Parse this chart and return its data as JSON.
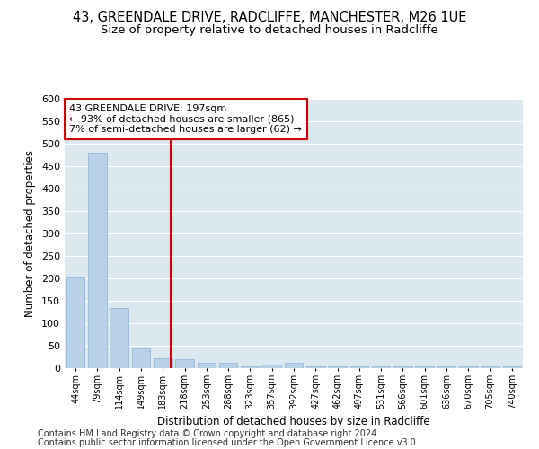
{
  "title1": "43, GREENDALE DRIVE, RADCLIFFE, MANCHESTER, M26 1UE",
  "title2": "Size of property relative to detached houses in Radcliffe",
  "xlabel": "Distribution of detached houses by size in Radcliffe",
  "ylabel": "Number of detached properties",
  "footer1": "Contains HM Land Registry data © Crown copyright and database right 2024.",
  "footer2": "Contains public sector information licensed under the Open Government Licence v3.0.",
  "categories": [
    "44sqm",
    "79sqm",
    "114sqm",
    "149sqm",
    "183sqm",
    "218sqm",
    "253sqm",
    "288sqm",
    "323sqm",
    "357sqm",
    "392sqm",
    "427sqm",
    "462sqm",
    "497sqm",
    "531sqm",
    "566sqm",
    "601sqm",
    "636sqm",
    "670sqm",
    "705sqm",
    "740sqm"
  ],
  "values": [
    202,
    480,
    135,
    44,
    22,
    20,
    13,
    13,
    5,
    8,
    12,
    5,
    4,
    5,
    5,
    5,
    4,
    4,
    5,
    4,
    4
  ],
  "bar_color": "#b8d0e8",
  "bar_edgecolor": "#8ab0d0",
  "background_color": "#dce8f0",
  "grid_color": "#ffffff",
  "annotation_text": "43 GREENDALE DRIVE: 197sqm\n← 93% of detached houses are smaller (865)\n7% of semi-detached houses are larger (62) →",
  "annotation_box_color": "#ffffff",
  "annotation_box_edgecolor": "#cc0000",
  "redline_color": "#cc0000",
  "ylim": [
    0,
    600
  ],
  "yticks": [
    0,
    50,
    100,
    150,
    200,
    250,
    300,
    350,
    400,
    450,
    500,
    550,
    600
  ],
  "title1_fontsize": 10.5,
  "title2_fontsize": 9.5,
  "xlabel_fontsize": 8.5,
  "ylabel_fontsize": 8.5,
  "tick_fontsize": 8,
  "xtick_fontsize": 7,
  "annotation_fontsize": 8,
  "footer_fontsize": 7
}
